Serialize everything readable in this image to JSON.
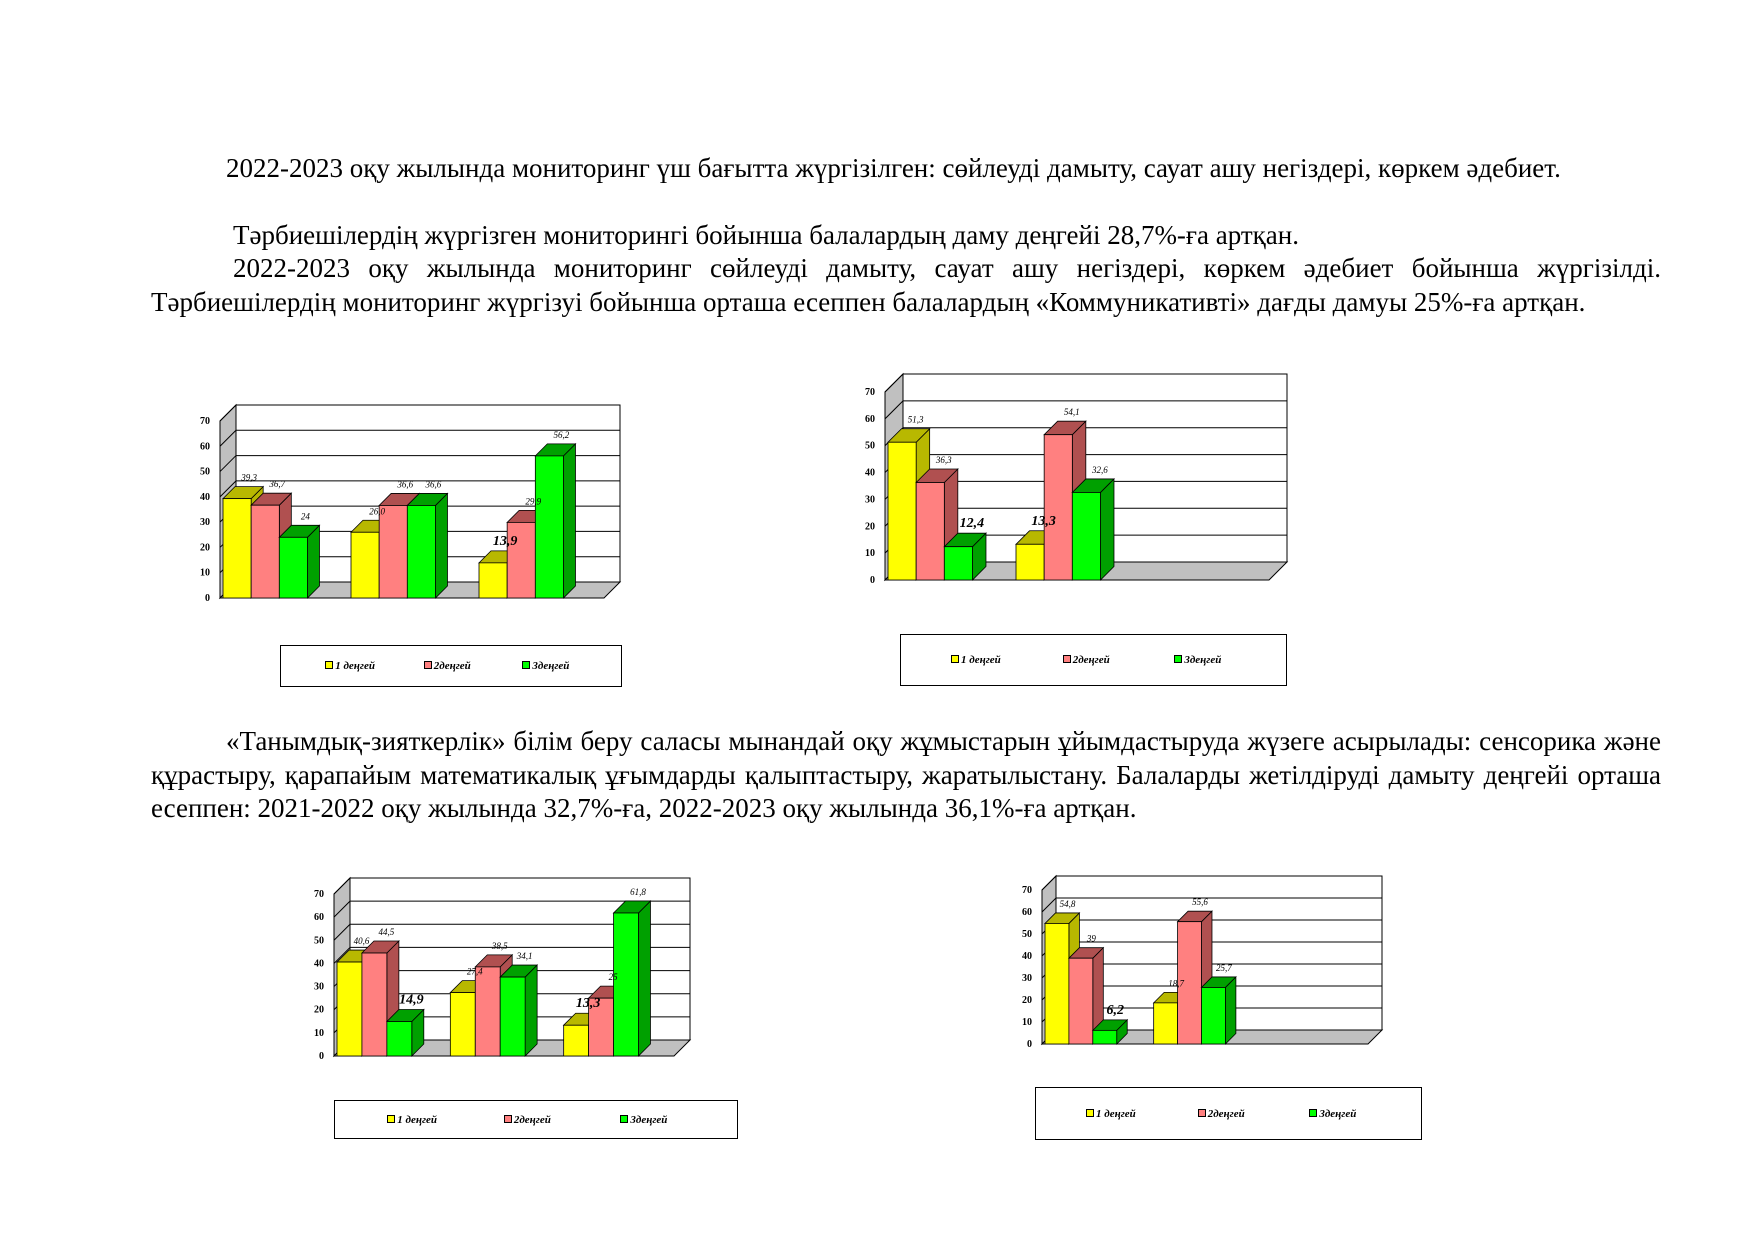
{
  "paragraphs": [
    "2022-2023 оқу жылында мониторинг үш бағытта жүргізілген: сөйлеуді дамыту, сауат ашу негіздері, көркем әдебиет.",
    "Тәрбиешілердің жүргізген мониторингі бойынша балалардың даму деңгейі 28,7%-ға артқан.",
    "2022-2023 оқу жылында мониторинг сөйлеуді дамыту, сауат ашу негіздері, көркем әдебиет бойынша жүргізілді. Тәрбиешілердің мониторинг жүргізуі бойынша орташа есеппен балалардың «Коммуникативті» дағды дамуы 25%-ға артқан.",
    "«Танымдық-зияткерлік» білім беру саласы мынандай оқу жұмыстарын ұйымдастыруда жүзеге асырылады: сенсорика және құрастыру, қарапайым математикалық ұғымдарды қалыптастыру,  жаратылыстану.  Балаларды жетілдіруді дамыту деңгейі орташа есеппен:  2021-2022 оқу жылында 32,7%-ға,  2022-2023 оқу жылында 36,1%-ға артқан."
  ],
  "legend_labels": [
    "1 деңгей",
    "2деңгей",
    "3деңгей"
  ],
  "colors": {
    "level1": "#ffff00",
    "level1_dark": "#b8b800",
    "level2": "#ff8080",
    "level2_dark": "#b05050",
    "level3": "#00ff00",
    "level3_dark": "#00a000"
  },
  "chart_data": [
    {
      "type": "bar",
      "style": "3d-clustered",
      "y_ticks": [
        "0",
        "10",
        "20",
        "30",
        "40",
        "50",
        "60",
        "70"
      ],
      "ylim": [
        0,
        70
      ],
      "series": [
        {
          "name": "1 деңгей",
          "values": [
            39.3,
            26.0,
            13.9
          ],
          "labels": [
            "39,3",
            "26,0",
            "13,9"
          ]
        },
        {
          "name": "2деңгей",
          "values": [
            36.7,
            36.6,
            29.9
          ],
          "labels": [
            "36,7",
            "36,6",
            "29,9"
          ]
        },
        {
          "name": "3деңгей",
          "values": [
            24,
            36.6,
            56.2
          ],
          "labels": [
            "24",
            "36,6",
            "56,2"
          ]
        }
      ]
    },
    {
      "type": "bar",
      "style": "3d-clustered",
      "y_ticks": [
        "0",
        "10",
        "20",
        "30",
        "40",
        "50",
        "60",
        "70"
      ],
      "ylim": [
        0,
        70
      ],
      "series": [
        {
          "name": "1 деңгей",
          "values": [
            51.3,
            13.3
          ],
          "labels": [
            "51,3",
            "13,3"
          ]
        },
        {
          "name": "2деңгей",
          "values": [
            36.3,
            54.1
          ],
          "labels": [
            "36,3",
            "54,1"
          ]
        },
        {
          "name": "3деңгей",
          "values": [
            12.4,
            32.6
          ],
          "labels": [
            "12,4",
            "32,6"
          ]
        }
      ]
    },
    {
      "type": "bar",
      "style": "3d-clustered",
      "y_ticks": [
        "0",
        "10",
        "20",
        "30",
        "40",
        "50",
        "60",
        "70"
      ],
      "ylim": [
        0,
        70
      ],
      "series": [
        {
          "name": "1 деңгей",
          "values": [
            40.6,
            27.4,
            13.3
          ],
          "labels": [
            "40,6",
            "27,4",
            "13,3"
          ]
        },
        {
          "name": "2деңгей",
          "values": [
            44.5,
            38.5,
            25
          ],
          "labels": [
            "44,5",
            "38,5",
            "25"
          ]
        },
        {
          "name": "3деңгей",
          "values": [
            14.9,
            34.1,
            61.8
          ],
          "labels": [
            "14,9",
            "34,1",
            "61,8"
          ]
        }
      ]
    },
    {
      "type": "bar",
      "style": "3d-clustered",
      "y_ticks": [
        "0",
        "10",
        "20",
        "30",
        "40",
        "50",
        "60",
        "70"
      ],
      "ylim": [
        0,
        70
      ],
      "series": [
        {
          "name": "1 деңгей",
          "values": [
            54.8,
            18.7
          ],
          "labels": [
            "54,8",
            "18,7"
          ]
        },
        {
          "name": "2деңгей",
          "values": [
            39,
            55.6
          ],
          "labels": [
            "39",
            "55,6"
          ]
        },
        {
          "name": "3деңгей",
          "values": [
            6.2,
            25.7
          ],
          "labels": [
            "6,2",
            "25,7"
          ]
        }
      ]
    }
  ]
}
